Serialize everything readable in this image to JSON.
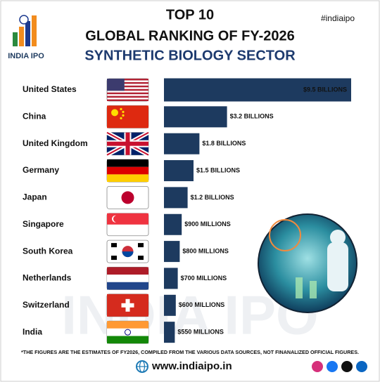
{
  "title_line1": "TOP 10",
  "title_line2": "GLOBAL RANKING OF FY-2026",
  "title_line3": "SYNTHETIC BIOLOGY SECTOR",
  "hashtag": "#indiaipo",
  "logo_text": "INDIA IPO",
  "watermark": "INDIA IPO",
  "footnote": "*THE FIGURES ARE THE ESTIMATES OF FY2026, COMPILED FROM THE VARIOUS DATA SOURCES, NOT FINANALIZED OFFICIAL FIGURES.",
  "website": "www.indiaipo.in",
  "chart_data": {
    "type": "bar",
    "orientation": "horizontal",
    "color": "#1d3a5f",
    "categories": [
      "United States",
      "China",
      "United Kingdom",
      "Germany",
      "Japan",
      "Singapore",
      "South Korea",
      "Netherlands",
      "Switzerland",
      "India"
    ],
    "values": [
      9.5,
      3.2,
      1.8,
      1.5,
      1.2,
      0.9,
      0.8,
      0.7,
      0.6,
      0.55
    ],
    "value_labels": [
      "$9.5 BILLIONS",
      "$3.2 BILLIONS",
      "$1.8 BILLIONS",
      "$1.5 BILLIONS",
      "$1.2 BILLIONS",
      "$900 MILLIONS",
      "$800 MILLIONS",
      "$700 MILLIONS",
      "$600 MILLIONS",
      "$550 MILLIONS"
    ]
  }
}
